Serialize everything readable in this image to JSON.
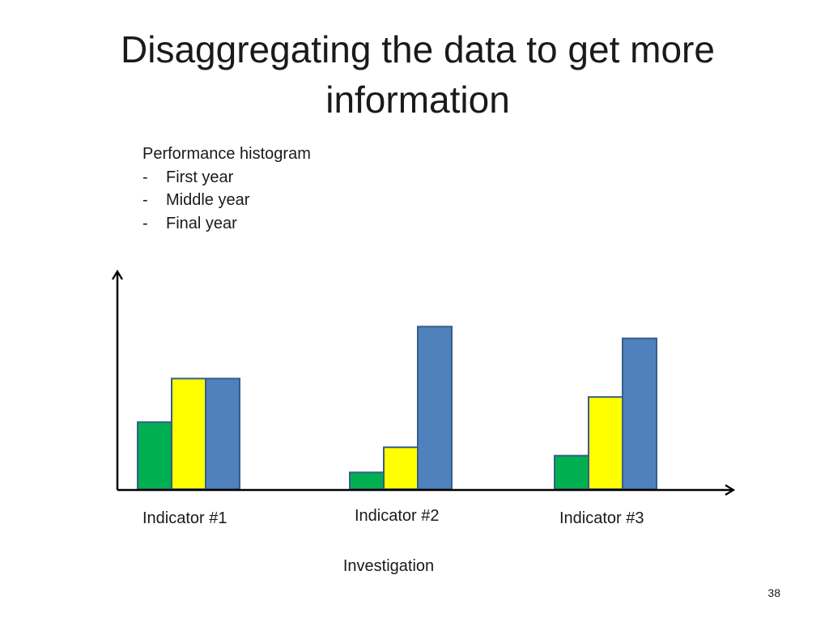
{
  "slide": {
    "title": "Disaggregating the data to get more information",
    "page_number": "38"
  },
  "notes": {
    "heading": "Performance histogram",
    "items": [
      "First year",
      "Middle year",
      "Final year"
    ],
    "dash": "-"
  },
  "chart_data": {
    "type": "bar",
    "categories": [
      "Indicator #1",
      "Indicator #2",
      "Indicator #3"
    ],
    "series": [
      {
        "values": [
          40,
          10,
          20
        ],
        "color": "#00b050"
      },
      {
        "values": [
          66,
          25,
          55
        ],
        "color": "#ffff00"
      },
      {
        "values": [
          66,
          97,
          90
        ],
        "color": "#4f81bd"
      }
    ],
    "xlabel": "Investigation",
    "ylabel": "",
    "ylim": [
      0,
      130
    ],
    "grid": false,
    "axes": "arrowheads on x and y axes, no tick labels",
    "bar_stroke": "#385d8a"
  }
}
